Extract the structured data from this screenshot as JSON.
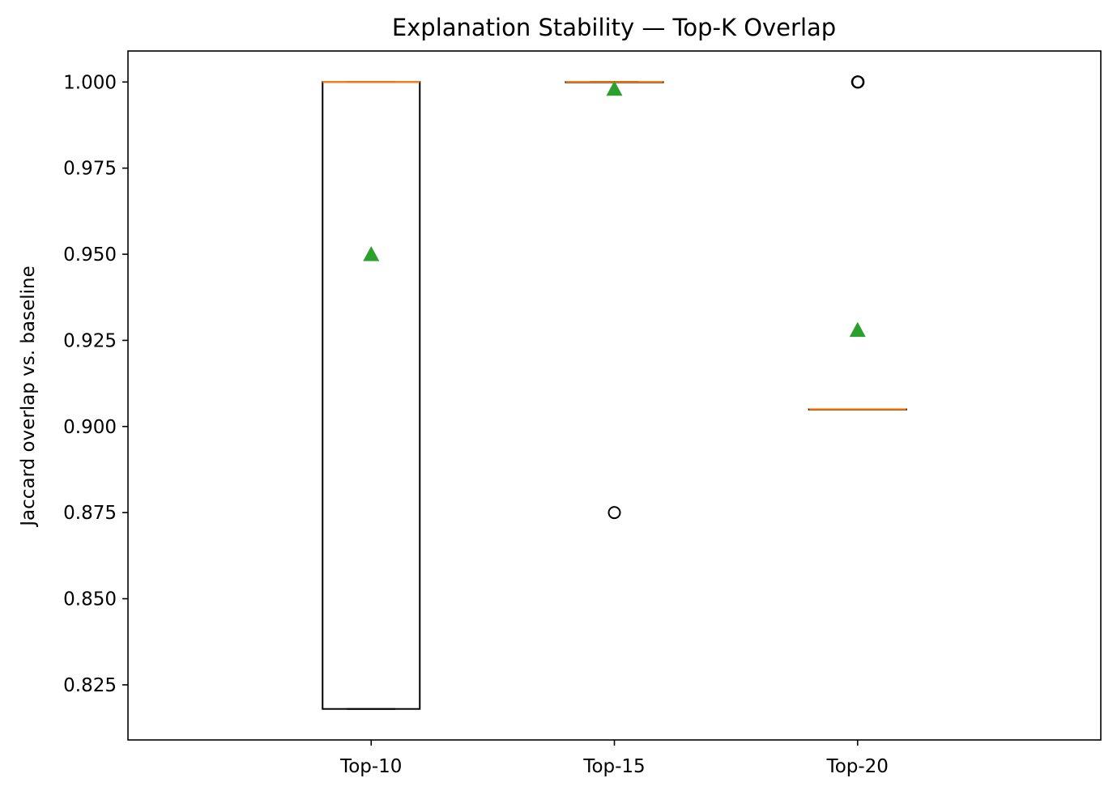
{
  "chart_data": {
    "type": "box",
    "title": "Explanation Stability — Top-K Overlap",
    "xlabel": "",
    "ylabel": "Jaccard overlap vs. baseline",
    "categories": [
      "Top-10",
      "Top-15",
      "Top-20"
    ],
    "ylim": [
      0.809,
      1.009
    ],
    "yticks": [
      0.825,
      0.85,
      0.875,
      0.9,
      0.925,
      0.95,
      0.975,
      1.0
    ],
    "ytick_labels": [
      "0.825",
      "0.850",
      "0.875",
      "0.900",
      "0.925",
      "0.950",
      "0.975",
      "1.000"
    ],
    "grid": false,
    "boxes": [
      {
        "category": "Top-10",
        "q1": 0.818,
        "median": 1.0,
        "q3": 1.0,
        "whisker_low": 0.818,
        "whisker_high": 1.0,
        "mean": 0.95,
        "outliers": []
      },
      {
        "category": "Top-15",
        "q1": 1.0,
        "median": 1.0,
        "q3": 1.0,
        "whisker_low": 1.0,
        "whisker_high": 1.0,
        "mean": 0.998,
        "outliers": [
          0.875
        ]
      },
      {
        "category": "Top-20",
        "q1": 0.905,
        "median": 0.905,
        "q3": 0.905,
        "whisker_low": 0.905,
        "whisker_high": 0.905,
        "mean": 0.928,
        "outliers": [
          1.0,
          1.0
        ]
      }
    ],
    "colors": {
      "box": "#000000",
      "median": "#ff7f0e",
      "mean": "#2ca02c",
      "outlier": "#000000"
    }
  }
}
